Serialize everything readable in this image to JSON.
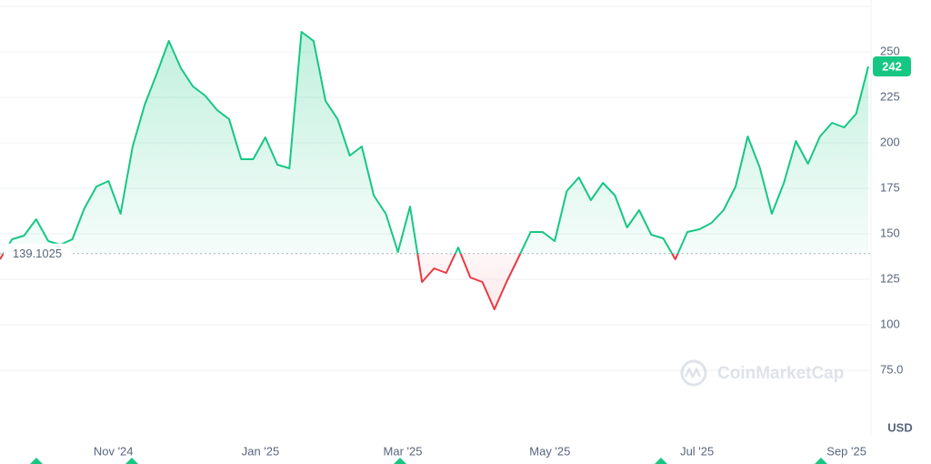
{
  "chart_data": {
    "type": "line",
    "watermark": "CoinMarketCap",
    "currency_label": "USD",
    "baseline": 139.1025,
    "up_color": "#16c784",
    "down_color": "#ea3943",
    "x": [
      0,
      5,
      10,
      15,
      20,
      25,
      30,
      35,
      40,
      45,
      50,
      55,
      60,
      65,
      70,
      75,
      80,
      85,
      90,
      95,
      100,
      105,
      110,
      115,
      120,
      125,
      130,
      135,
      140,
      145,
      150,
      155,
      160,
      165,
      170,
      175,
      180,
      185,
      190,
      195,
      200,
      205,
      210,
      215,
      220,
      225,
      230,
      235,
      240,
      245,
      250,
      255,
      260,
      265,
      270,
      275,
      280,
      285,
      290,
      295,
      300,
      305,
      310,
      315,
      320,
      325,
      330,
      335,
      340,
      345,
      350,
      355,
      360
    ],
    "values": [
      136,
      147,
      149,
      158,
      146,
      144,
      147,
      164,
      176,
      179,
      161,
      198,
      221,
      238,
      256,
      241,
      231,
      226,
      218,
      213,
      191,
      191,
      203,
      188,
      186,
      261,
      256,
      223,
      213,
      193,
      198,
      171,
      161,
      140,
      165,
      123.5,
      131,
      128.5,
      142.5,
      126,
      123.5,
      108.5,
      123.5,
      137,
      151,
      151,
      146,
      173.5,
      181,
      168.5,
      178,
      171,
      153.5,
      163,
      149.5,
      147.5,
      136,
      151,
      152.5,
      156,
      163,
      176,
      203.5,
      186.5,
      161,
      178,
      201,
      188.5,
      203.5,
      211,
      208.5,
      216,
      242
    ],
    "xlim": [
      0,
      360
    ],
    "xticks": [
      {
        "value": 47,
        "label": "Nov '24"
      },
      {
        "value": 108,
        "label": "Jan '25"
      },
      {
        "value": 167,
        "label": "Mar '25"
      },
      {
        "value": 228,
        "label": "May '25"
      },
      {
        "value": 289,
        "label": "Jul '25"
      },
      {
        "value": 351,
        "label": "Sep '25"
      }
    ],
    "ylim": [
      39.5,
      275
    ],
    "yticks": [
      {
        "value": 75,
        "label": "75.0"
      },
      100,
      125,
      150,
      175,
      200,
      225,
      250
    ],
    "grid": true
  }
}
